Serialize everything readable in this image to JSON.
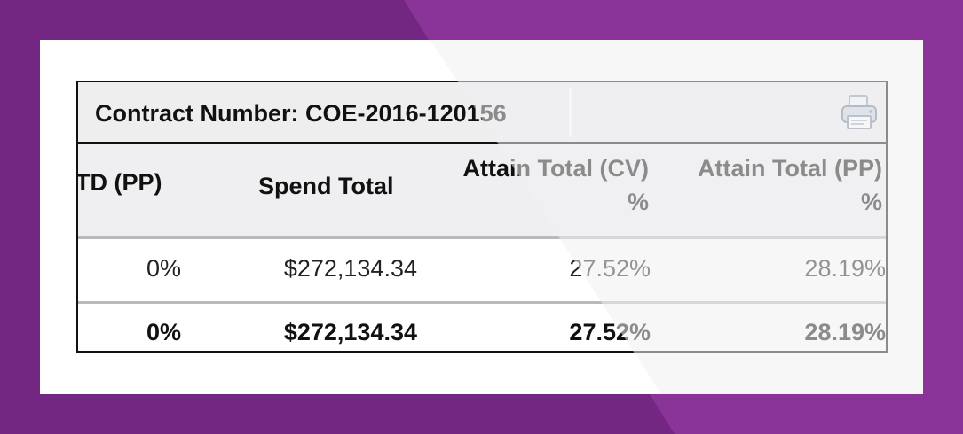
{
  "contract": {
    "title": "Contract Number: COE-2016-120156",
    "print_icon": "printer-icon"
  },
  "columns": [
    {
      "line1": "TD (PP)",
      "line2": ""
    },
    {
      "line1": "Spend Total",
      "line2": ""
    },
    {
      "line1": "Attain Total (CV)",
      "line2": "%"
    },
    {
      "line1": "Attain Total (PP)",
      "line2": "%"
    }
  ],
  "rows": [
    [
      "0%",
      "$272,134.34",
      "27.52%",
      "28.19%"
    ]
  ],
  "totals": [
    "0%",
    "$272,134.34",
    "27.52%",
    "28.19%"
  ],
  "colors": {
    "background_purple": "#7b2a8c",
    "header_gray": "#eeeeef",
    "border": "#111111"
  }
}
